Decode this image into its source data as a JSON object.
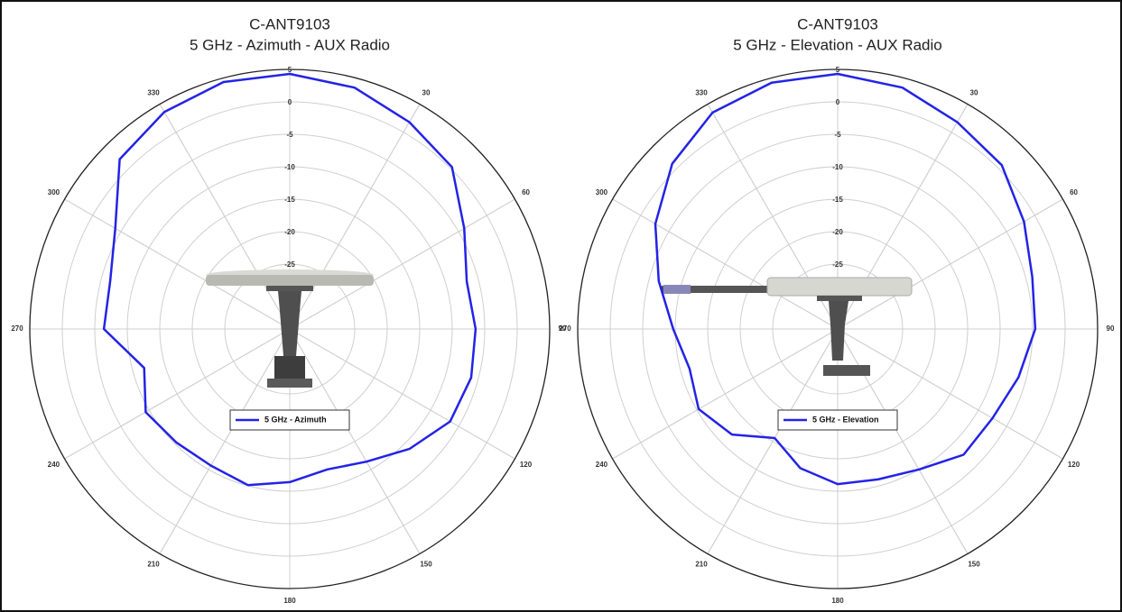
{
  "chart_data": [
    {
      "type": "polar",
      "title": "C-ANT9103",
      "subtitle": "5 GHz - Azimuth - AUX Radio",
      "theta": [
        0,
        15,
        30,
        45,
        60,
        75,
        90,
        105,
        120,
        135,
        150,
        165,
        180,
        195,
        210,
        225,
        240,
        255,
        270,
        285,
        300,
        315,
        330,
        345
      ],
      "series": [
        {
          "name": "5 GHz - Azimuth",
          "color": "#2323e6",
          "values": [
            4.3,
            3.5,
            1.8,
            0.3,
            -4,
            -6.8,
            -6.4,
            -6.1,
            -6.5,
            -8.9,
            -11.4,
            -12.6,
            -11.4,
            -10.1,
            -10.7,
            -10.3,
            -9.4,
            -11.8,
            -6.4,
            -6.4,
            -4,
            2,
            3.6,
            4.4
          ]
        }
      ],
      "rlim": [
        -35,
        5
      ],
      "rticks": [
        5,
        0,
        -5,
        -10,
        -15,
        -20,
        -25
      ],
      "thetaticks": [
        30,
        60,
        90,
        120,
        150,
        180,
        210,
        240,
        270,
        300,
        330
      ],
      "grid": true
    },
    {
      "type": "polar",
      "title": "C-ANT9103",
      "subtitle": "5 GHz - Elevation - AUX Radio",
      "theta": [
        0,
        15,
        30,
        45,
        60,
        75,
        90,
        105,
        120,
        135,
        150,
        165,
        180,
        195,
        210,
        225,
        240,
        255,
        270,
        285,
        300,
        315,
        330,
        345
      ],
      "series": [
        {
          "name": "5 GHz - Elevation",
          "color": "#2323e6",
          "values": [
            4.3,
            3.5,
            1.8,
            0.7,
            -1.9,
            -4,
            -4.6,
            -6.2,
            -7.5,
            -7.6,
            -10,
            -11,
            -11.1,
            -12.8,
            -15.6,
            -12,
            -10.3,
            -11.4,
            -9.7,
            -6.5,
            -2.6,
            1,
            3.5,
            4.3
          ]
        }
      ],
      "rlim": [
        -35,
        5
      ],
      "rticks": [
        5,
        0,
        -5,
        -10,
        -15,
        -20,
        -25
      ],
      "thetaticks": [
        30,
        60,
        90,
        120,
        150,
        180,
        210,
        240,
        270,
        300,
        330
      ],
      "grid": true
    }
  ]
}
